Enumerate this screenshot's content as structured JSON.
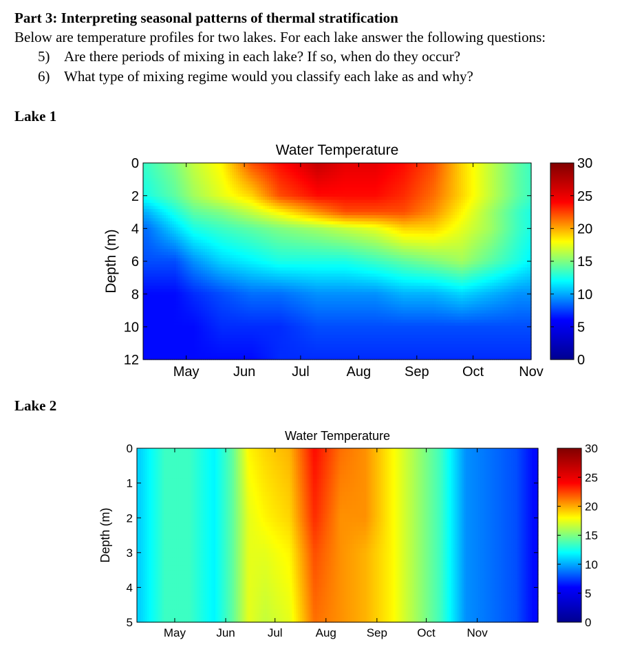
{
  "text": {
    "heading": "Part 3: Interpreting seasonal patterns of thermal stratification",
    "intro": "Below are temperature profiles for two lakes. For each lake answer the following questions:",
    "questions": [
      {
        "num": "5)",
        "text": "Are there periods of mixing in each lake? If so, when do they occur?"
      },
      {
        "num": "6)",
        "text": "What type of mixing regime would you classify each lake as and why?"
      }
    ],
    "lake1_label": "Lake 1",
    "lake2_label": "Lake 2"
  },
  "colors": {
    "colormap": "jet",
    "colormap_stops": [
      "#00008f",
      "#0000ff",
      "#00ffff",
      "#ffff00",
      "#ff0000",
      "#800000"
    ]
  },
  "chart_data": [
    {
      "type": "heatmap",
      "title": "Water Temperature",
      "ylabel": "Depth (m)",
      "xlabel": "",
      "x_ticks": [
        "May",
        "Jun",
        "Jul",
        "Aug",
        "Sep",
        "Oct",
        "Nov"
      ],
      "x_range_days": [
        "Apr 8",
        "Nov 1"
      ],
      "y_ticks": [
        0,
        2,
        4,
        6,
        8,
        10,
        12
      ],
      "ylim": [
        0,
        12
      ],
      "y_reversed": true,
      "colorbar": {
        "min": 0,
        "max": 30,
        "ticks": [
          0,
          5,
          10,
          15,
          20,
          25,
          30
        ]
      },
      "profiles": [
        {
          "date": "Apr 10",
          "depth_m": [
            0,
            2,
            3,
            4,
            6,
            8,
            10,
            12
          ],
          "temp_c": [
            13,
            12,
            9,
            7,
            6,
            4,
            4,
            4
          ]
        },
        {
          "date": "Apr 25",
          "depth_m": [
            0,
            2,
            3,
            4,
            6,
            8,
            10,
            12
          ],
          "temp_c": [
            15,
            14,
            12,
            10,
            6,
            4,
            4,
            4
          ]
        },
        {
          "date": "May 5",
          "depth_m": [
            0,
            2,
            3,
            4,
            6,
            8,
            10,
            12
          ],
          "temp_c": [
            17,
            16,
            14,
            12,
            8,
            5,
            4,
            4
          ]
        },
        {
          "date": "May 20",
          "depth_m": [
            0,
            2,
            3,
            4,
            6,
            8,
            10,
            12
          ],
          "temp_c": [
            19,
            18,
            15,
            13,
            10,
            6,
            5,
            4
          ]
        },
        {
          "date": "Jun 5",
          "depth_m": [
            0,
            2,
            3,
            4,
            6,
            8,
            10,
            12
          ],
          "temp_c": [
            24,
            20,
            17,
            14,
            11,
            7,
            5,
            4
          ]
        },
        {
          "date": "Jun 20",
          "depth_m": [
            0,
            2,
            3,
            4,
            6,
            8,
            10,
            12
          ],
          "temp_c": [
            26,
            24,
            19,
            15,
            12,
            7,
            5,
            5
          ]
        },
        {
          "date": "Jul 10",
          "depth_m": [
            0,
            2,
            3,
            4,
            6,
            8,
            10,
            12
          ],
          "temp_c": [
            28,
            26,
            22,
            16,
            12,
            8,
            6,
            5
          ]
        },
        {
          "date": "Jul 25",
          "depth_m": [
            0,
            2,
            3,
            4,
            6,
            8,
            10,
            12
          ],
          "temp_c": [
            27,
            26,
            24,
            17,
            12,
            8,
            6,
            5
          ]
        },
        {
          "date": "Aug 10",
          "depth_m": [
            0,
            2,
            3,
            4,
            6,
            8,
            10,
            12
          ],
          "temp_c": [
            27,
            26,
            24,
            18,
            13,
            8,
            6,
            5
          ]
        },
        {
          "date": "Aug 25",
          "depth_m": [
            0,
            2,
            3,
            4,
            6,
            8,
            10,
            12
          ],
          "temp_c": [
            26,
            25,
            24,
            20,
            14,
            9,
            6,
            5
          ]
        },
        {
          "date": "Sep 10",
          "depth_m": [
            0,
            2,
            3,
            4,
            6,
            8,
            10,
            12
          ],
          "temp_c": [
            24,
            23,
            22,
            20,
            15,
            9,
            6,
            5
          ]
        },
        {
          "date": "Sep 25",
          "depth_m": [
            0,
            2,
            3,
            4,
            6,
            8,
            10,
            12
          ],
          "temp_c": [
            20,
            20,
            19,
            18,
            16,
            10,
            6,
            5
          ]
        },
        {
          "date": "Oct 10",
          "depth_m": [
            0,
            2,
            3,
            4,
            6,
            8,
            10,
            12
          ],
          "temp_c": [
            17,
            17,
            16,
            16,
            14,
            9,
            6,
            5
          ]
        },
        {
          "date": "Oct 25",
          "depth_m": [
            0,
            2,
            3,
            4,
            6,
            8,
            10,
            12
          ],
          "temp_c": [
            14,
            14,
            13,
            13,
            12,
            8,
            6,
            5
          ]
        },
        {
          "date": "Nov 1",
          "depth_m": [
            0,
            2,
            3,
            4,
            6,
            8,
            10,
            12
          ],
          "temp_c": [
            13,
            13,
            12,
            12,
            11,
            8,
            6,
            5
          ]
        }
      ]
    },
    {
      "type": "heatmap",
      "title": "Water Temperature",
      "ylabel": "Depth (m)",
      "xlabel": "",
      "x_ticks": [
        "May",
        "Jun",
        "Jul",
        "Aug",
        "Sep",
        "Oct",
        "Nov"
      ],
      "x_range_days": [
        "Apr 8",
        "Dec 8"
      ],
      "y_ticks": [
        0,
        1,
        2,
        3,
        4,
        5
      ],
      "ylim": [
        0,
        5
      ],
      "y_reversed": true,
      "colorbar": {
        "min": 0,
        "max": 30,
        "ticks": [
          0,
          5,
          10,
          15,
          20,
          25,
          30
        ]
      },
      "profiles": [
        {
          "date": "Apr 10",
          "depth_m": [
            0,
            2,
            3,
            5
          ],
          "temp_c": [
            10,
            10,
            10,
            10
          ]
        },
        {
          "date": "Apr 25",
          "depth_m": [
            0,
            2,
            3,
            5
          ],
          "temp_c": [
            13,
            13,
            13,
            13
          ]
        },
        {
          "date": "May 10",
          "depth_m": [
            0,
            2,
            3,
            5
          ],
          "temp_c": [
            13,
            13,
            13,
            13
          ]
        },
        {
          "date": "May 25",
          "depth_m": [
            0,
            2,
            3,
            5
          ],
          "temp_c": [
            11,
            11,
            11,
            11
          ]
        },
        {
          "date": "Jun 5",
          "depth_m": [
            0,
            2,
            3,
            5
          ],
          "temp_c": [
            14,
            14,
            14,
            14
          ]
        },
        {
          "date": "Jun 15",
          "depth_m": [
            0,
            2,
            3,
            5
          ],
          "temp_c": [
            19,
            18,
            18,
            18
          ]
        },
        {
          "date": "Jun 25",
          "depth_m": [
            0,
            2,
            3,
            5
          ],
          "temp_c": [
            20,
            19,
            18,
            17
          ]
        },
        {
          "date": "Jul 10",
          "depth_m": [
            0,
            2,
            3,
            5
          ],
          "temp_c": [
            21,
            20,
            19,
            18
          ]
        },
        {
          "date": "Jul 25",
          "depth_m": [
            0,
            2,
            3,
            5
          ],
          "temp_c": [
            26,
            25,
            24,
            23
          ]
        },
        {
          "date": "Aug 10",
          "depth_m": [
            0,
            2,
            3,
            5
          ],
          "temp_c": [
            23,
            22,
            22,
            22
          ]
        },
        {
          "date": "Aug 25",
          "depth_m": [
            0,
            2,
            3,
            5
          ],
          "temp_c": [
            22,
            22,
            21,
            21
          ]
        },
        {
          "date": "Sep 10",
          "depth_m": [
            0,
            2,
            3,
            5
          ],
          "temp_c": [
            19,
            19,
            19,
            19
          ]
        },
        {
          "date": "Sep 25",
          "depth_m": [
            0,
            2,
            3,
            5
          ],
          "temp_c": [
            16,
            16,
            16,
            16
          ]
        },
        {
          "date": "Oct 10",
          "depth_m": [
            0,
            2,
            3,
            5
          ],
          "temp_c": [
            13,
            13,
            13,
            13
          ]
        },
        {
          "date": "Oct 25",
          "depth_m": [
            0,
            2,
            3,
            5
          ],
          "temp_c": [
            8,
            8,
            8,
            8
          ]
        },
        {
          "date": "Nov 10",
          "depth_m": [
            0,
            2,
            3,
            5
          ],
          "temp_c": [
            7,
            7,
            7,
            7
          ]
        },
        {
          "date": "Nov 25",
          "depth_m": [
            0,
            2,
            3,
            5
          ],
          "temp_c": [
            6,
            6,
            6,
            6
          ]
        },
        {
          "date": "Dec 5",
          "depth_m": [
            0,
            2,
            3,
            5
          ],
          "temp_c": [
            4,
            4,
            4,
            4
          ]
        }
      ]
    }
  ]
}
